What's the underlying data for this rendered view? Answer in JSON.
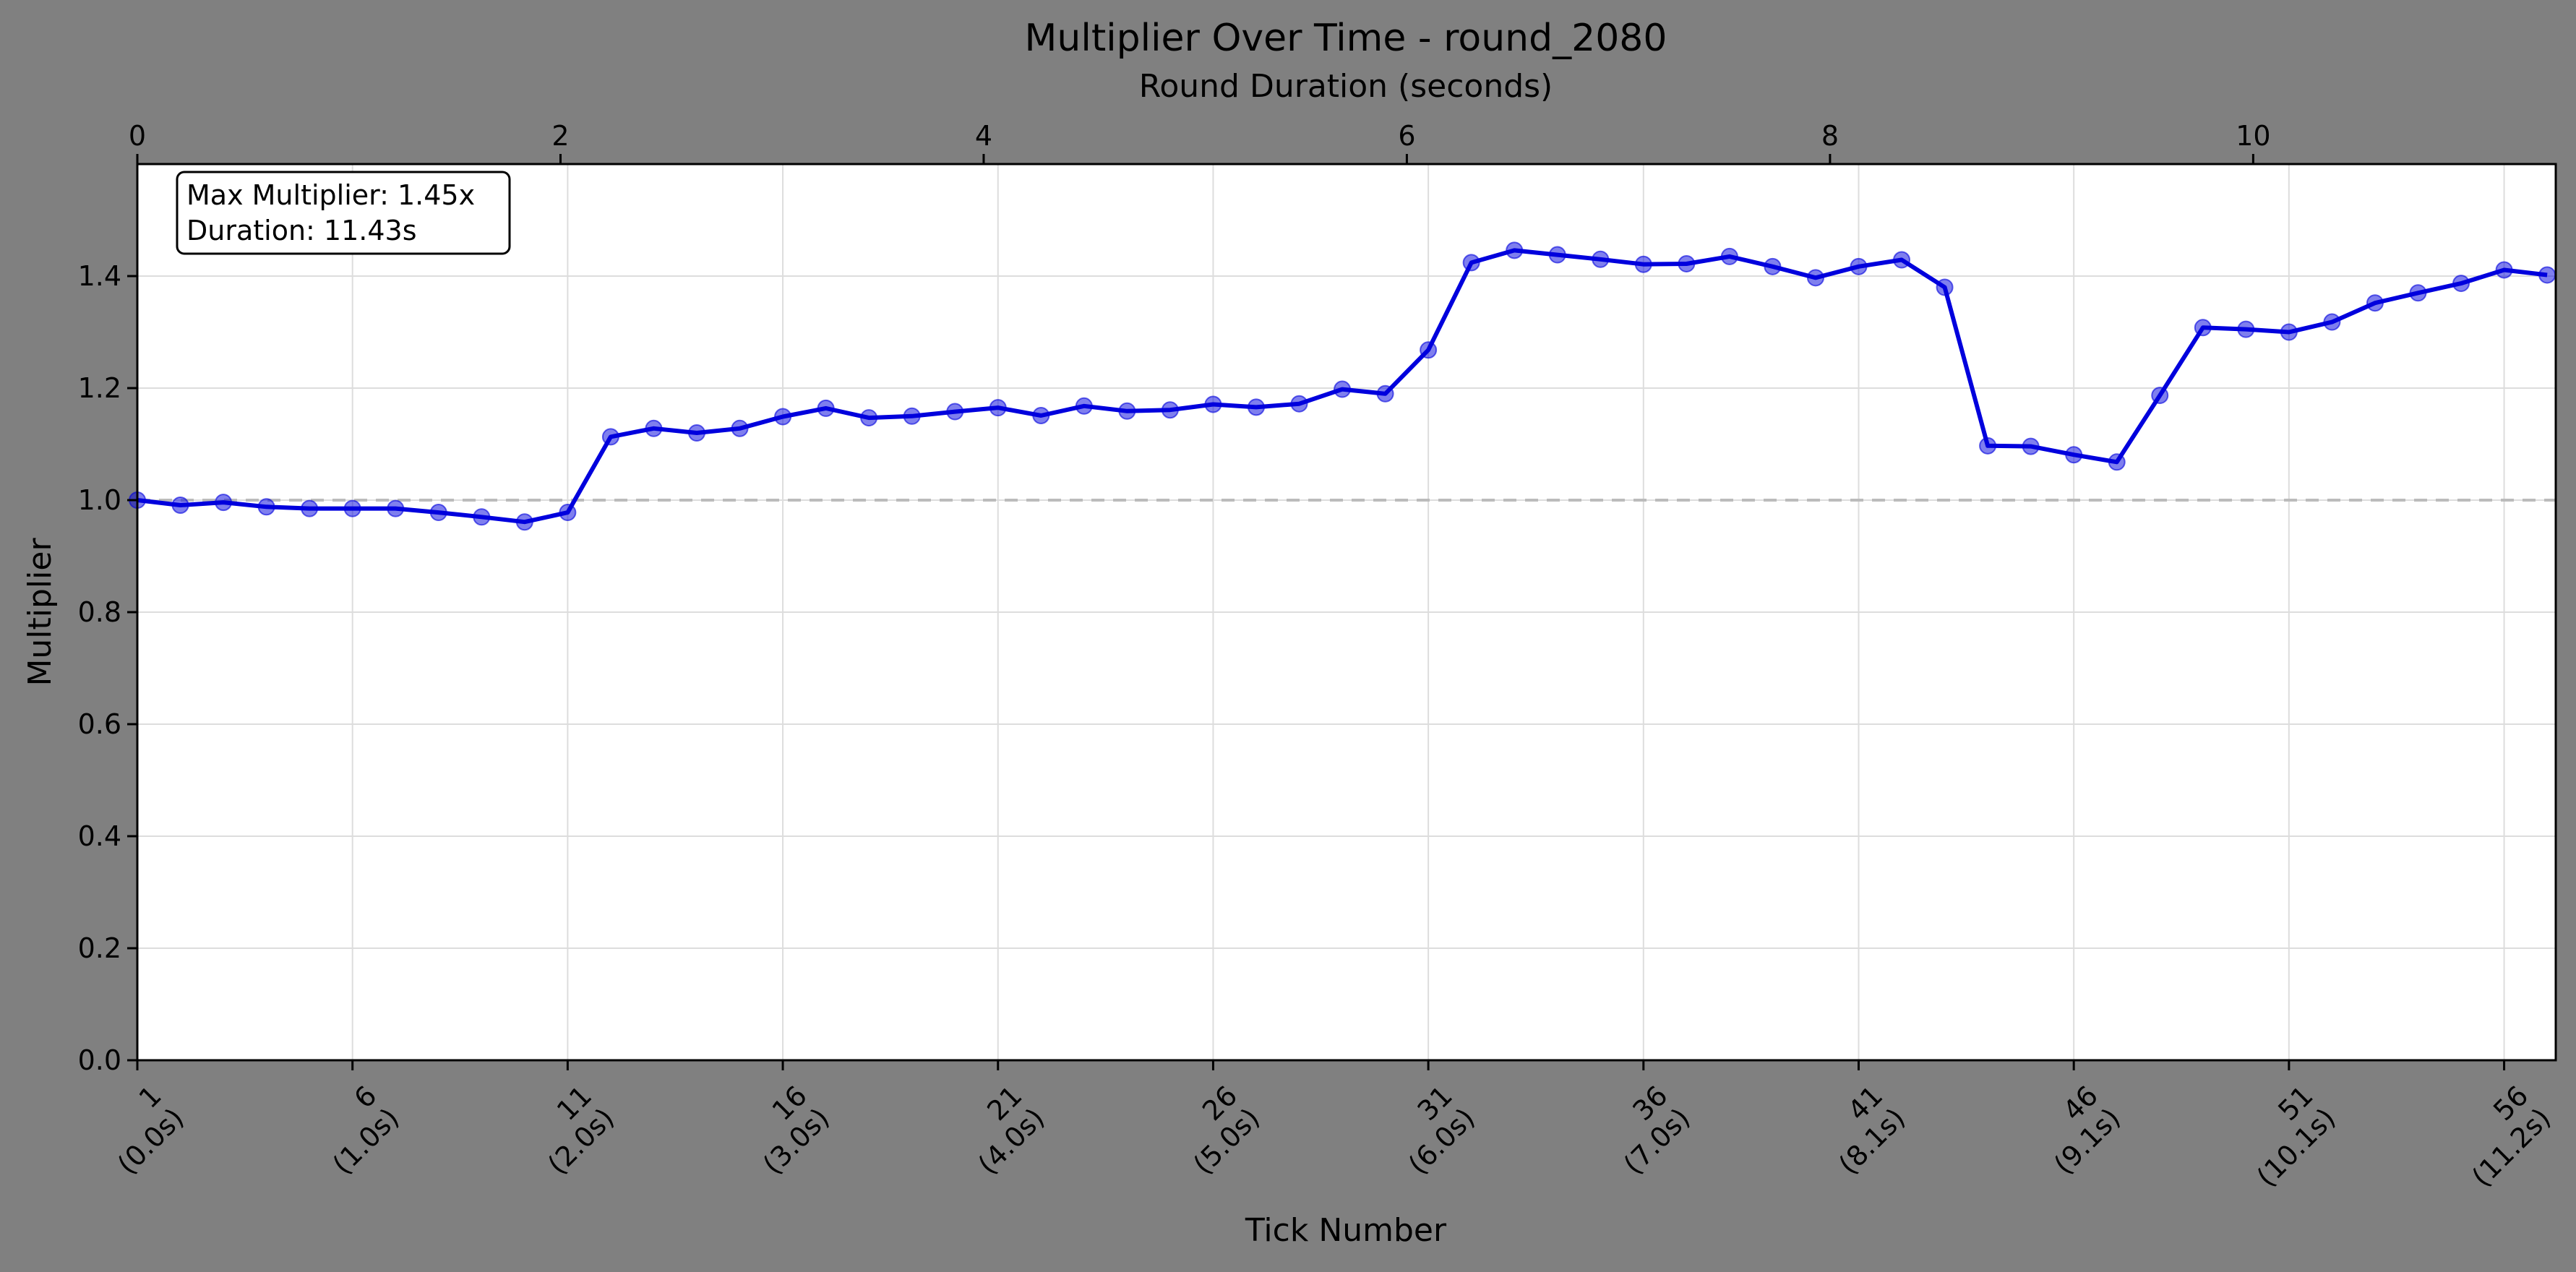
{
  "chart_data": {
    "type": "line",
    "title": "Multiplier Over Time - round_2080",
    "xlabel": "Tick Number",
    "ylabel": "Multiplier",
    "x2label": "Round Duration (seconds)",
    "xlim": [
      1,
      57.2
    ],
    "ylim": [
      0,
      1.6
    ],
    "x2lim": [
      0,
      11.43
    ],
    "x_ticks": [
      {
        "value": 1,
        "label": "1",
        "sublabel": "(0.0s)"
      },
      {
        "value": 6,
        "label": "6",
        "sublabel": "(1.0s)"
      },
      {
        "value": 11,
        "label": "11",
        "sublabel": "(2.0s)"
      },
      {
        "value": 16,
        "label": "16",
        "sublabel": "(3.0s)"
      },
      {
        "value": 21,
        "label": "21",
        "sublabel": "(4.0s)"
      },
      {
        "value": 26,
        "label": "26",
        "sublabel": "(5.0s)"
      },
      {
        "value": 31,
        "label": "31",
        "sublabel": "(6.0s)"
      },
      {
        "value": 36,
        "label": "36",
        "sublabel": "(7.0s)"
      },
      {
        "value": 41,
        "label": "41",
        "sublabel": "(8.1s)"
      },
      {
        "value": 46,
        "label": "46",
        "sublabel": "(9.1s)"
      },
      {
        "value": 51,
        "label": "51",
        "sublabel": "(10.1s)"
      },
      {
        "value": 56,
        "label": "56",
        "sublabel": "(11.2s)"
      }
    ],
    "x2_ticks": [
      0,
      2,
      4,
      6,
      8,
      10
    ],
    "y_ticks": [
      0.0,
      0.2,
      0.4,
      0.6,
      0.8,
      1.0,
      1.2,
      1.4
    ],
    "y_tick_labels": [
      "0.0",
      "0.2",
      "0.4",
      "0.6",
      "0.8",
      "1.0",
      "1.2",
      "1.4"
    ],
    "reference_line": {
      "y": 1.0,
      "style": "dashed",
      "color": "#bbbbbb"
    },
    "grid": true,
    "series": [
      {
        "color": "#0000dd",
        "x": [
          1,
          2,
          3,
          4,
          5,
          6,
          7,
          8,
          9,
          10,
          11,
          12,
          13,
          14,
          15,
          16,
          17,
          18,
          19,
          20,
          21,
          22,
          23,
          24,
          25,
          26,
          27,
          28,
          29,
          30,
          31,
          32,
          33,
          34,
          35,
          36,
          37,
          38,
          39,
          40,
          41,
          42,
          43,
          44,
          45,
          46,
          47,
          48,
          49,
          50,
          51,
          52,
          53,
          54,
          55,
          56,
          57
        ],
        "values": [
          1.0,
          0.991,
          0.996,
          0.988,
          0.985,
          0.985,
          0.985,
          0.978,
          0.97,
          0.961,
          0.978,
          1.113,
          1.128,
          1.12,
          1.128,
          1.149,
          1.164,
          1.147,
          1.15,
          1.158,
          1.165,
          1.151,
          1.168,
          1.159,
          1.161,
          1.171,
          1.166,
          1.172,
          1.198,
          1.19,
          1.268,
          1.424,
          1.446,
          1.438,
          1.43,
          1.421,
          1.422,
          1.435,
          1.417,
          1.397,
          1.417,
          1.429,
          1.38,
          1.097,
          1.096,
          1.081,
          1.068,
          1.187,
          1.308,
          1.305,
          1.3,
          1.318,
          1.352,
          1.37,
          1.387,
          1.411,
          1.402
        ]
      }
    ],
    "annotation_lines": [
      "Max Multiplier: 1.45x",
      "Duration: 11.43s"
    ]
  }
}
